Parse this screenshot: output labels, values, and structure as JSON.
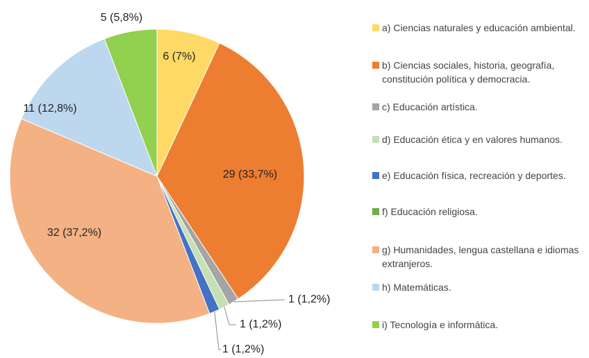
{
  "chart_data": {
    "type": "pie",
    "categories": [
      "a) Ciencias naturales y educación ambiental.",
      "b) Ciencias sociales, historia, geografía, constitución política y democracia.",
      "c) Educación artística.",
      "d) Educación ética y en valores humanos.",
      "e) Educación física, recreación y deportes.",
      "f) Educación religiosa.",
      "g) Humanidades, lengua castellana e idiomas extranjeros.",
      "h) Matemáticas.",
      "i) Tecnología e informática."
    ],
    "values": [
      6,
      29,
      1,
      1,
      1,
      0,
      32,
      11,
      5
    ],
    "value_labels": [
      "6 (7%)",
      "29 (33,7%)",
      "1 (1,2%)",
      "1 (1,2%)",
      "1 (1,2%)",
      null,
      "32 (37,2%)",
      "11 (12,8%)",
      "5 (5,8%)"
    ],
    "colors": [
      "#FFD966",
      "#ED7D31",
      "#A5A5A5",
      "#C5E0B4",
      "#4472C4",
      "#70AD47",
      "#F4B183",
      "#BDD7EE",
      "#92D050"
    ],
    "legend": "right"
  }
}
